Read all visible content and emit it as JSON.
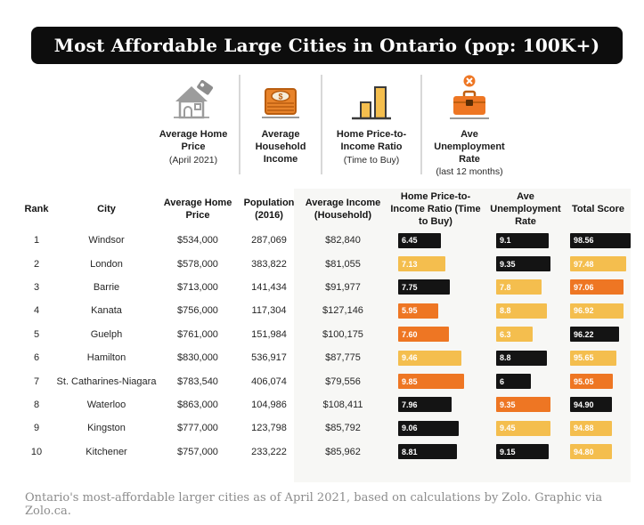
{
  "page": {
    "title": "Most Affordable Large Cities in Ontario (pop: 100K+)",
    "caption": "Ontario's most-affordable larger cities as of April 2021, based on calculations by Zolo. Graphic via Zolo.ca."
  },
  "colors": {
    "title_bg": "#0d0d0d",
    "black": "#141414",
    "yellow": "#f4be4e",
    "orange": "#ee7623",
    "divider": "#d8d8d8",
    "panel_bg": "#f7f7f5"
  },
  "legend": {
    "items": [
      {
        "icon": "house-icon",
        "label": "Average Home Price",
        "sub": "(April 2021)"
      },
      {
        "icon": "money-icon",
        "label": "Average Household Income",
        "sub": ""
      },
      {
        "icon": "bar-chart-icon",
        "label": "Home Price-to-Income Ratio",
        "sub": "(Time to Buy)"
      },
      {
        "icon": "briefcase-icon",
        "label": "Ave Unemployment Rate",
        "sub": "(last 12 months)"
      }
    ]
  },
  "chart_data": {
    "type": "table",
    "title": "Most Affordable Large Cities in Ontario (pop: 100K+)",
    "columns": [
      "Rank",
      "City",
      "Average Home Price",
      "Population (2016)",
      "Average Income (Household)",
      "Home Price-to-Income Ratio (Time to Buy)",
      "Ave Unemployment Rate",
      "Total Score"
    ],
    "rows": [
      {
        "rank": "1",
        "city": "Windsor",
        "home_price": "$534,000",
        "population": "287,069",
        "income": "$82,840",
        "ratio": "6.45",
        "ratio_color": "black",
        "unemployment": "9.1",
        "unemployment_color": "black",
        "score": "98.56",
        "score_color": "black"
      },
      {
        "rank": "2",
        "city": "London",
        "home_price": "$578,000",
        "population": "383,822",
        "income": "$81,055",
        "ratio": "7.13",
        "ratio_color": "yellow",
        "unemployment": "9.35",
        "unemployment_color": "black",
        "score": "97.48",
        "score_color": "yellow"
      },
      {
        "rank": "3",
        "city": "Barrie",
        "home_price": "$713,000",
        "population": "141,434",
        "income": "$91,977",
        "ratio": "7.75",
        "ratio_color": "black",
        "unemployment": "7.8",
        "unemployment_color": "yellow",
        "score": "97.06",
        "score_color": "orange"
      },
      {
        "rank": "4",
        "city": "Kanata",
        "home_price": "$756,000",
        "population": "117,304",
        "income": "$127,146",
        "ratio": "5.95",
        "ratio_color": "orange",
        "unemployment": "8.8",
        "unemployment_color": "yellow",
        "score": "96.92",
        "score_color": "yellow"
      },
      {
        "rank": "5",
        "city": "Guelph",
        "home_price": "$761,000",
        "population": "151,984",
        "income": "$100,175",
        "ratio": "7.60",
        "ratio_color": "orange",
        "unemployment": "6.3",
        "unemployment_color": "yellow",
        "score": "96.22",
        "score_color": "black"
      },
      {
        "rank": "6",
        "city": "Hamilton",
        "home_price": "$830,000",
        "population": "536,917",
        "income": "$87,775",
        "ratio": "9.46",
        "ratio_color": "yellow",
        "unemployment": "8.8",
        "unemployment_color": "black",
        "score": "95.65",
        "score_color": "yellow"
      },
      {
        "rank": "7",
        "city": "St. Catharines-Niagara",
        "home_price": "$783,540",
        "population": "406,074",
        "income": "$79,556",
        "ratio": "9.85",
        "ratio_color": "orange",
        "unemployment": "6",
        "unemployment_color": "black",
        "score": "95.05",
        "score_color": "orange"
      },
      {
        "rank": "8",
        "city": "Waterloo",
        "home_price": "$863,000",
        "population": "104,986",
        "income": "$108,411",
        "ratio": "7.96",
        "ratio_color": "black",
        "unemployment": "9.35",
        "unemployment_color": "orange",
        "score": "94.90",
        "score_color": "black"
      },
      {
        "rank": "9",
        "city": "Kingston",
        "home_price": "$777,000",
        "population": "123,798",
        "income": "$85,792",
        "ratio": "9.06",
        "ratio_color": "black",
        "unemployment": "9.45",
        "unemployment_color": "yellow",
        "score": "94.88",
        "score_color": "yellow"
      },
      {
        "rank": "10",
        "city": "Kitchener",
        "home_price": "$757,000",
        "population": "233,222",
        "income": "$85,962",
        "ratio": "8.81",
        "ratio_color": "black",
        "unemployment": "9.15",
        "unemployment_color": "black",
        "score": "94.80",
        "score_color": "yellow"
      }
    ]
  }
}
